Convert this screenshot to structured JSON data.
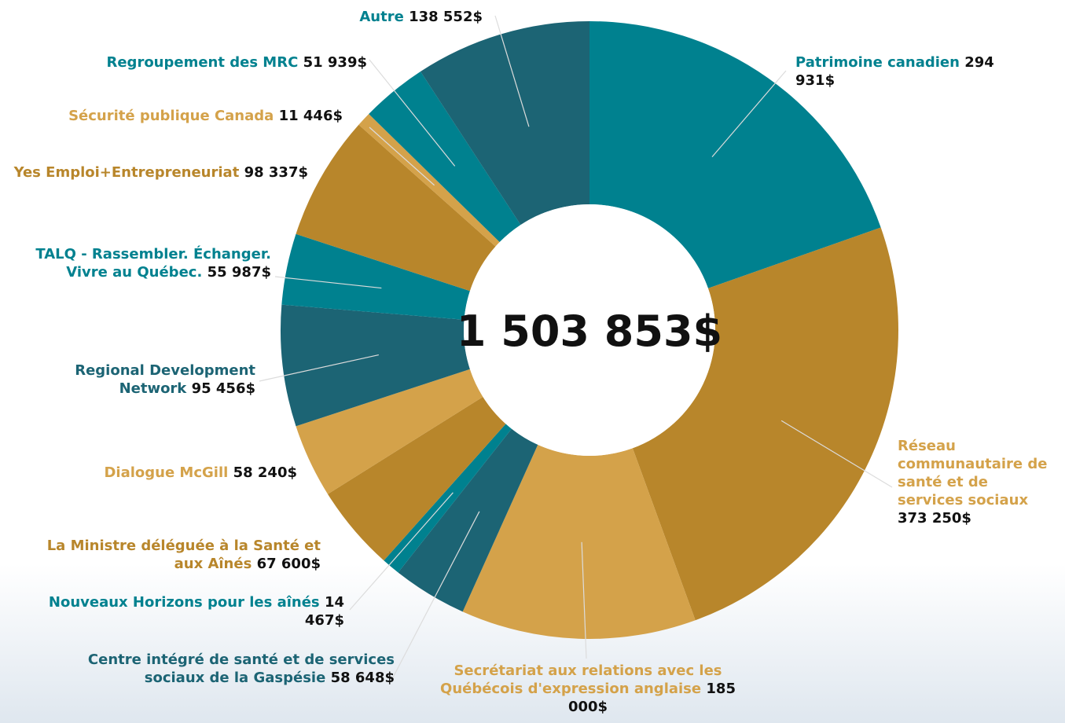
{
  "chart_data": {
    "type": "pie",
    "donut": true,
    "center_label": "1 503 853$",
    "categories": [
      "Patrimoine canadien",
      "Réseau communautaire de santé et de services sociaux",
      "Secrétariat aux relations avec les Québécois d'expression anglaise",
      "Centre intégré de santé et de services sociaux de la Gaspésie",
      "Nouveaux Horizons pour les aînés",
      "La Ministre déléguée à la Santé et aux Aînés",
      "Dialogue McGill",
      "Regional Development Network",
      "TALQ - Rassembler. Échanger. Vivre au Québec.",
      "Yes Emploi+Entrepreneuriat",
      "Sécurité publique Canada",
      "Regroupement des MRC",
      "Autre"
    ],
    "values": [
      294931,
      373250,
      185000,
      58648,
      14467,
      67600,
      58240,
      95456,
      55987,
      98337,
      11446,
      51939,
      138552
    ],
    "value_labels": [
      "294 931$",
      "373 250$",
      "185 000$",
      "58 648$",
      "14 467$",
      "67 600$",
      "58 240$",
      "95 456$",
      "55 987$",
      "98 337$",
      "11 446$",
      "51 939$",
      "138 552$"
    ],
    "colors": [
      "#00818f",
      "#b8862b",
      "#d4a24a",
      "#1c6474",
      "#00818f",
      "#b8862b",
      "#d4a24a",
      "#1c6474",
      "#00818f",
      "#b8862b",
      "#d4a24a",
      "#00818f",
      "#1c6474"
    ],
    "label_colors": [
      "#00818f",
      "#d4a24a",
      "#d4a24a",
      "#1c6474",
      "#00818f",
      "#b8862b",
      "#d4a24a",
      "#1c6474",
      "#00818f",
      "#b8862b",
      "#d4a24a",
      "#00818f",
      "#00818f"
    ]
  }
}
